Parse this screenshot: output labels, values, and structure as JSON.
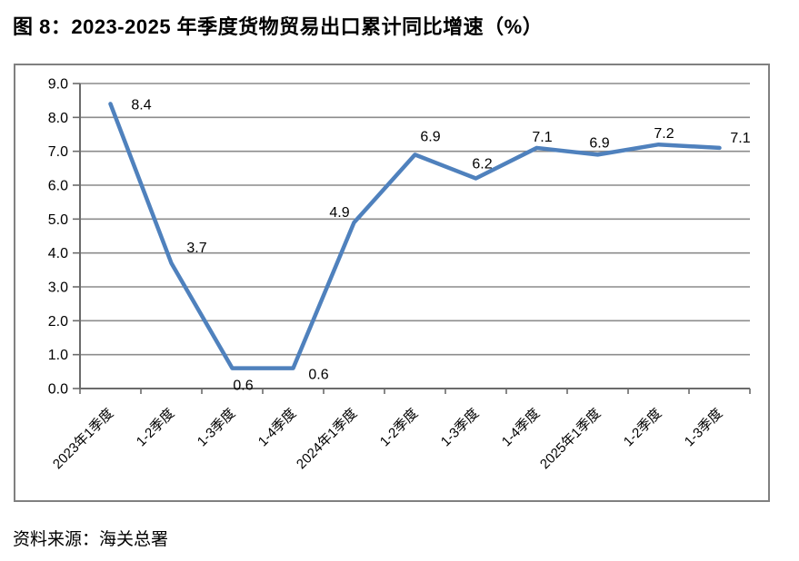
{
  "page": {
    "title": "图 8：2023-2025 年季度货物贸易出口累计同比增速（%）",
    "source": "资料来源：海关总署"
  },
  "colors": {
    "line": "#4F81BD",
    "grid": "#8C8C8C",
    "axis": "#6B6B6B",
    "box_border": "#808080",
    "text": "#000000"
  },
  "chart_data": {
    "type": "line",
    "title": "图 8：2023-2025 年季度货物贸易出口累计同比增速（%）",
    "categories": [
      "2023年1季度",
      "1-2季度",
      "1-3季度",
      "1-4季度",
      "2024年1季度",
      "1-2季度",
      "1-3季度",
      "1-4季度",
      "2025年1季度",
      "1-2季度",
      "1-3季度"
    ],
    "values": [
      8.4,
      3.7,
      0.6,
      0.6,
      4.9,
      6.9,
      6.2,
      7.1,
      6.9,
      7.2,
      7.1
    ],
    "xlabel": "",
    "ylabel": "",
    "ylim": [
      0.0,
      9.0
    ],
    "ytick_step": 1.0,
    "ytick_decimals": 1,
    "grid": true,
    "legend": "none",
    "data_labels": true,
    "source": "资料来源：海关总署"
  }
}
